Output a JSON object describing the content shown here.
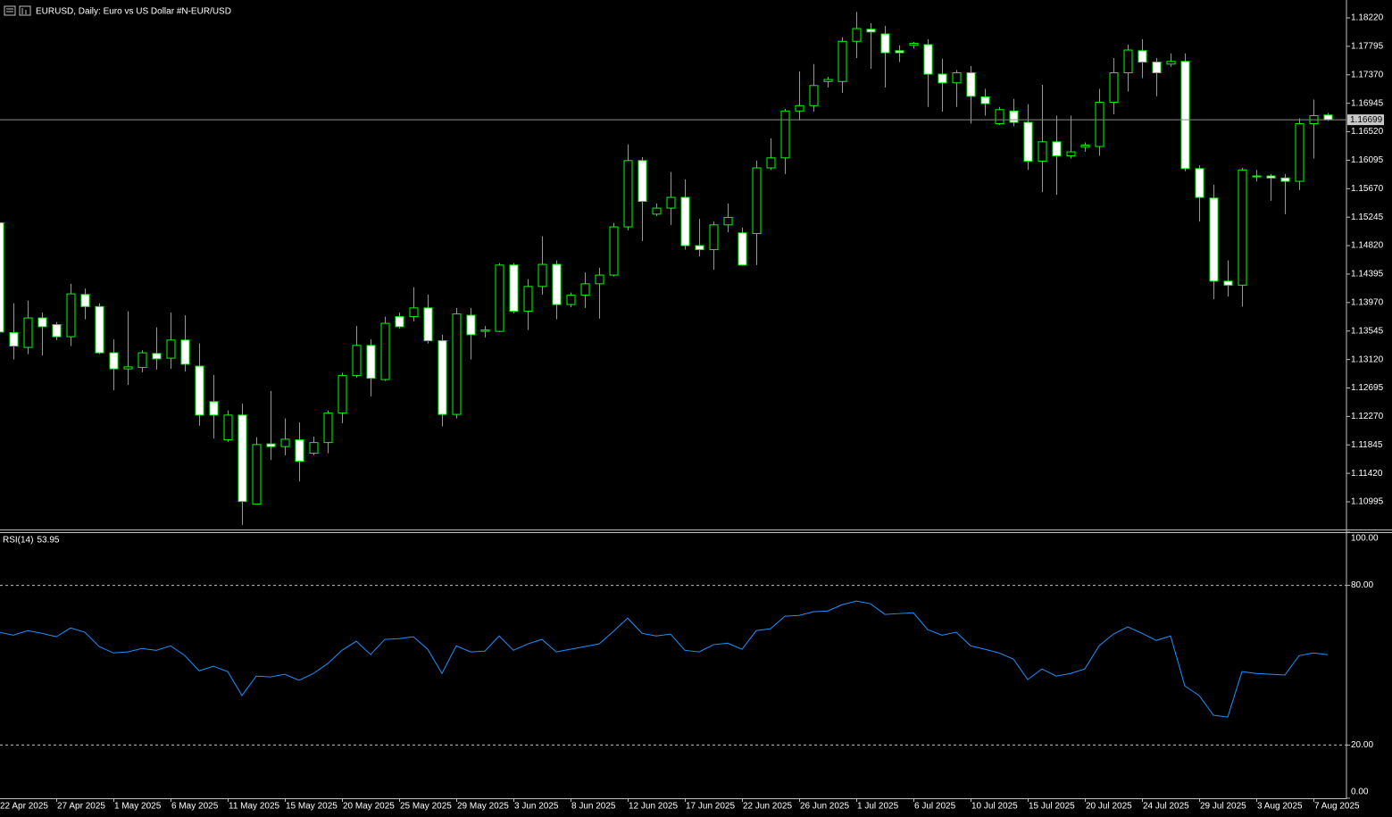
{
  "chart_data": [
    {
      "type": "candlestick",
      "title": "EURUSD, Daily:  Euro vs US Dollar #N-EUR/USD",
      "categories": [
        "22 Apr 2025",
        null,
        null,
        null,
        "27 Apr 2025",
        null,
        null,
        null,
        "1 May 2025",
        null,
        null,
        null,
        "6 May 2025",
        null,
        null,
        null,
        "11 May 2025",
        null,
        null,
        null,
        "15 May 2025",
        null,
        null,
        null,
        "20 May 2025",
        null,
        null,
        null,
        "25 May 2025",
        null,
        null,
        null,
        "29 May 2025",
        null,
        null,
        null,
        "3 Jun 2025",
        null,
        null,
        null,
        "8 Jun 2025",
        null,
        null,
        null,
        "12 Jun 2025",
        null,
        null,
        null,
        "17 Jun 2025",
        null,
        null,
        null,
        "22 Jun 2025",
        null,
        null,
        null,
        "26 Jun 2025",
        null,
        null,
        null,
        "1 Jul 2025",
        null,
        null,
        null,
        "6 Jul 2025",
        null,
        null,
        null,
        "10 Jul 2025",
        null,
        null,
        null,
        "15 Jul 2025",
        null,
        null,
        null,
        "20 Jul 2025",
        null,
        null,
        null,
        "24 Jul 2025",
        null,
        null,
        null,
        "29 Jul 2025",
        null,
        null,
        null,
        "3 Aug 2025",
        null,
        null,
        null,
        "7 Aug 2025",
        null
      ],
      "open": [
        1.1516,
        1.1352,
        1.133,
        1.1374,
        1.1364,
        1.1346,
        1.1409,
        1.1391,
        1.1322,
        1.1298,
        1.13,
        1.1321,
        1.1314,
        1.1341,
        1.1302,
        1.1249,
        1.1192,
        1.1229,
        1.1096,
        1.1186,
        1.1182,
        1.1192,
        1.1172,
        1.1188,
        1.1232,
        1.1288,
        1.1333,
        1.1282,
        1.1376,
        1.1376,
        1.1389,
        1.134,
        1.123,
        1.1378,
        1.1354,
        1.1354,
        1.1453,
        1.1384,
        1.1421,
        1.1454,
        1.1394,
        1.1408,
        1.1425,
        1.1438,
        1.151,
        1.1609,
        1.1529,
        1.1538,
        1.1554,
        1.1482,
        1.1476,
        1.1513,
        1.1501,
        1.15,
        1.1598,
        1.1613,
        1.1683,
        1.1691,
        1.1727,
        1.1727,
        1.1787,
        1.1805,
        1.1798,
        1.1773,
        1.1781,
        1.1782,
        1.1738,
        1.1725,
        1.174,
        1.1704,
        1.1664,
        1.1683,
        1.1666,
        1.1608,
        1.1637,
        1.1616,
        1.1629,
        1.163,
        1.1696,
        1.174,
        1.1773,
        1.1756,
        1.1753,
        1.1757,
        1.1597,
        1.1553,
        1.1429,
        1.1423,
        1.1585,
        1.1586,
        1.1583,
        1.1578,
        1.1664,
        1.1677
      ],
      "high": [
        1.1518,
        1.1396,
        1.14,
        1.1382,
        1.1368,
        1.1425,
        1.1418,
        1.1396,
        1.1342,
        1.1384,
        1.1326,
        1.136,
        1.1382,
        1.1378,
        1.1336,
        1.1289,
        1.1236,
        1.1246,
        1.1196,
        1.1265,
        1.1224,
        1.1218,
        1.1197,
        1.1236,
        1.1292,
        1.1362,
        1.1342,
        1.1376,
        1.1382,
        1.142,
        1.1409,
        1.1349,
        1.1389,
        1.1389,
        1.1362,
        1.1456,
        1.1456,
        1.1432,
        1.1496,
        1.146,
        1.1412,
        1.1442,
        1.1449,
        1.1516,
        1.1633,
        1.1614,
        1.1545,
        1.1592,
        1.1581,
        1.1522,
        1.1518,
        1.1545,
        1.1509,
        1.1609,
        1.1642,
        1.1686,
        1.1742,
        1.1753,
        1.1734,
        1.1793,
        1.1831,
        1.1814,
        1.181,
        1.1781,
        1.1786,
        1.179,
        1.1761,
        1.1744,
        1.175,
        1.1716,
        1.1689,
        1.1701,
        1.1693,
        1.1722,
        1.1676,
        1.1676,
        1.1636,
        1.1716,
        1.1762,
        1.1782,
        1.179,
        1.1762,
        1.1769,
        1.1769,
        1.1602,
        1.1573,
        1.146,
        1.1598,
        1.1595,
        1.1589,
        1.1589,
        1.1672,
        1.17,
        1.168
      ],
      "low": [
        1.1342,
        1.1312,
        1.132,
        1.1318,
        1.1341,
        1.1332,
        1.1372,
        1.132,
        1.1266,
        1.1274,
        1.1293,
        1.1297,
        1.1298,
        1.1294,
        1.1213,
        1.1194,
        1.1189,
        1.1065,
        1.1096,
        1.1162,
        1.1169,
        1.113,
        1.1169,
        1.1172,
        1.1217,
        1.1285,
        1.1257,
        1.128,
        1.1358,
        1.1369,
        1.1336,
        1.1212,
        1.1224,
        1.1312,
        1.1345,
        1.1353,
        1.1381,
        1.1356,
        1.1409,
        1.1372,
        1.139,
        1.1389,
        1.1373,
        1.1436,
        1.1505,
        1.1489,
        1.1526,
        1.1513,
        1.1476,
        1.1466,
        1.1446,
        1.1502,
        1.1452,
        1.1453,
        1.1595,
        1.1589,
        1.1669,
        1.1682,
        1.1718,
        1.171,
        1.1762,
        1.1746,
        1.1718,
        1.1756,
        1.1776,
        1.1689,
        1.1682,
        1.1689,
        1.1664,
        1.1676,
        1.1662,
        1.166,
        1.1595,
        1.1562,
        1.1558,
        1.1612,
        1.1622,
        1.1616,
        1.1678,
        1.1712,
        1.1732,
        1.1705,
        1.1749,
        1.1593,
        1.1518,
        1.1402,
        1.1406,
        1.1391,
        1.1578,
        1.1549,
        1.1529,
        1.1565,
        1.1612,
        1.1668
      ],
      "close": [
        1.1353,
        1.1332,
        1.1374,
        1.1361,
        1.1346,
        1.141,
        1.1391,
        1.1322,
        1.1298,
        1.1301,
        1.1322,
        1.1313,
        1.1341,
        1.1305,
        1.1229,
        1.1229,
        1.1229,
        1.11,
        1.1185,
        1.1182,
        1.1193,
        1.116,
        1.1188,
        1.1232,
        1.1288,
        1.1333,
        1.1284,
        1.1366,
        1.1361,
        1.1389,
        1.134,
        1.123,
        1.138,
        1.1349,
        1.1356,
        1.1453,
        1.1384,
        1.1421,
        1.1454,
        1.1394,
        1.1408,
        1.1425,
        1.1438,
        1.151,
        1.1609,
        1.1548,
        1.1538,
        1.1554,
        1.1482,
        1.1476,
        1.1513,
        1.1524,
        1.1453,
        1.1598,
        1.1613,
        1.1683,
        1.1691,
        1.1721,
        1.173,
        1.1787,
        1.1806,
        1.1801,
        1.177,
        1.177,
        1.1784,
        1.1738,
        1.1725,
        1.174,
        1.1705,
        1.1694,
        1.1685,
        1.1666,
        1.1608,
        1.1637,
        1.1616,
        1.1622,
        1.1632,
        1.1696,
        1.174,
        1.1774,
        1.1756,
        1.174,
        1.1757,
        1.1597,
        1.1554,
        1.1429,
        1.1423,
        1.1595,
        1.1586,
        1.1583,
        1.1578,
        1.1664,
        1.1676,
        1.167
      ],
      "up_color": "#000000",
      "down_color": "#ffffff",
      "line_color": "#00ff00",
      "current_price": 1.16699,
      "ylim": [
        1.10582,
        1.18487
      ],
      "yticks": [
        {
          "value": 1.1822,
          "label": "1.18220"
        },
        1.17795,
        {
          "value": 1.1737,
          "label": "1.17370"
        },
        1.16945,
        {
          "value": 1.1652,
          "label": "1.16520"
        },
        1.16095,
        {
          "value": 1.1567,
          "label": "1.15670"
        },
        1.15245,
        {
          "value": 1.1482,
          "label": "1.14820"
        },
        1.14395,
        {
          "value": 1.1397,
          "label": "1.13970"
        },
        1.13545,
        {
          "value": 1.1312,
          "label": "1.13120"
        },
        1.12695,
        {
          "value": 1.1227,
          "label": "1.12270"
        },
        1.11845,
        {
          "value": 1.1142,
          "label": "1.11420"
        },
        1.10995
      ]
    },
    {
      "type": "line",
      "series": [
        {
          "name": "RSI(14)",
          "color": "#1e90ff",
          "values": [
            62.4,
            61.3,
            63.0,
            62.0,
            60.7,
            64.0,
            62.4,
            57.0,
            54.6,
            55.0,
            56.3,
            55.6,
            57.3,
            53.6,
            47.9,
            49.6,
            47.6,
            38.6,
            45.9,
            45.6,
            46.6,
            44.3,
            46.9,
            50.6,
            55.6,
            59.0,
            54.0,
            59.7,
            60.0,
            60.7,
            56.0,
            46.9,
            57.3,
            55.0,
            55.3,
            61.0,
            55.6,
            58.0,
            59.7,
            55.0,
            56.0,
            57.0,
            58.0,
            62.7,
            67.7,
            62.0,
            61.0,
            61.7,
            55.6,
            55.0,
            57.7,
            58.3,
            56.0,
            63.0,
            63.7,
            68.4,
            68.7,
            70.1,
            70.4,
            72.7,
            74.1,
            73.1,
            69.1,
            69.4,
            69.7,
            63.4,
            61.3,
            62.4,
            57.3,
            56.0,
            54.6,
            52.3,
            44.6,
            48.6,
            45.9,
            46.9,
            48.6,
            57.3,
            61.7,
            64.4,
            62.0,
            59.3,
            61.0,
            42.2,
            38.6,
            31.2,
            30.5,
            47.6,
            46.9,
            46.6,
            46.3,
            53.6,
            54.6,
            53.95
          ]
        }
      ],
      "ylim": [
        0,
        100
      ],
      "yticks": [
        {
          "value": 100,
          "label": "100.00"
        },
        {
          "value": 80,
          "label": "80.00"
        },
        {
          "value": 20,
          "label": "20.00"
        },
        {
          "value": 0,
          "label": "0.00"
        }
      ]
    }
  ]
}
